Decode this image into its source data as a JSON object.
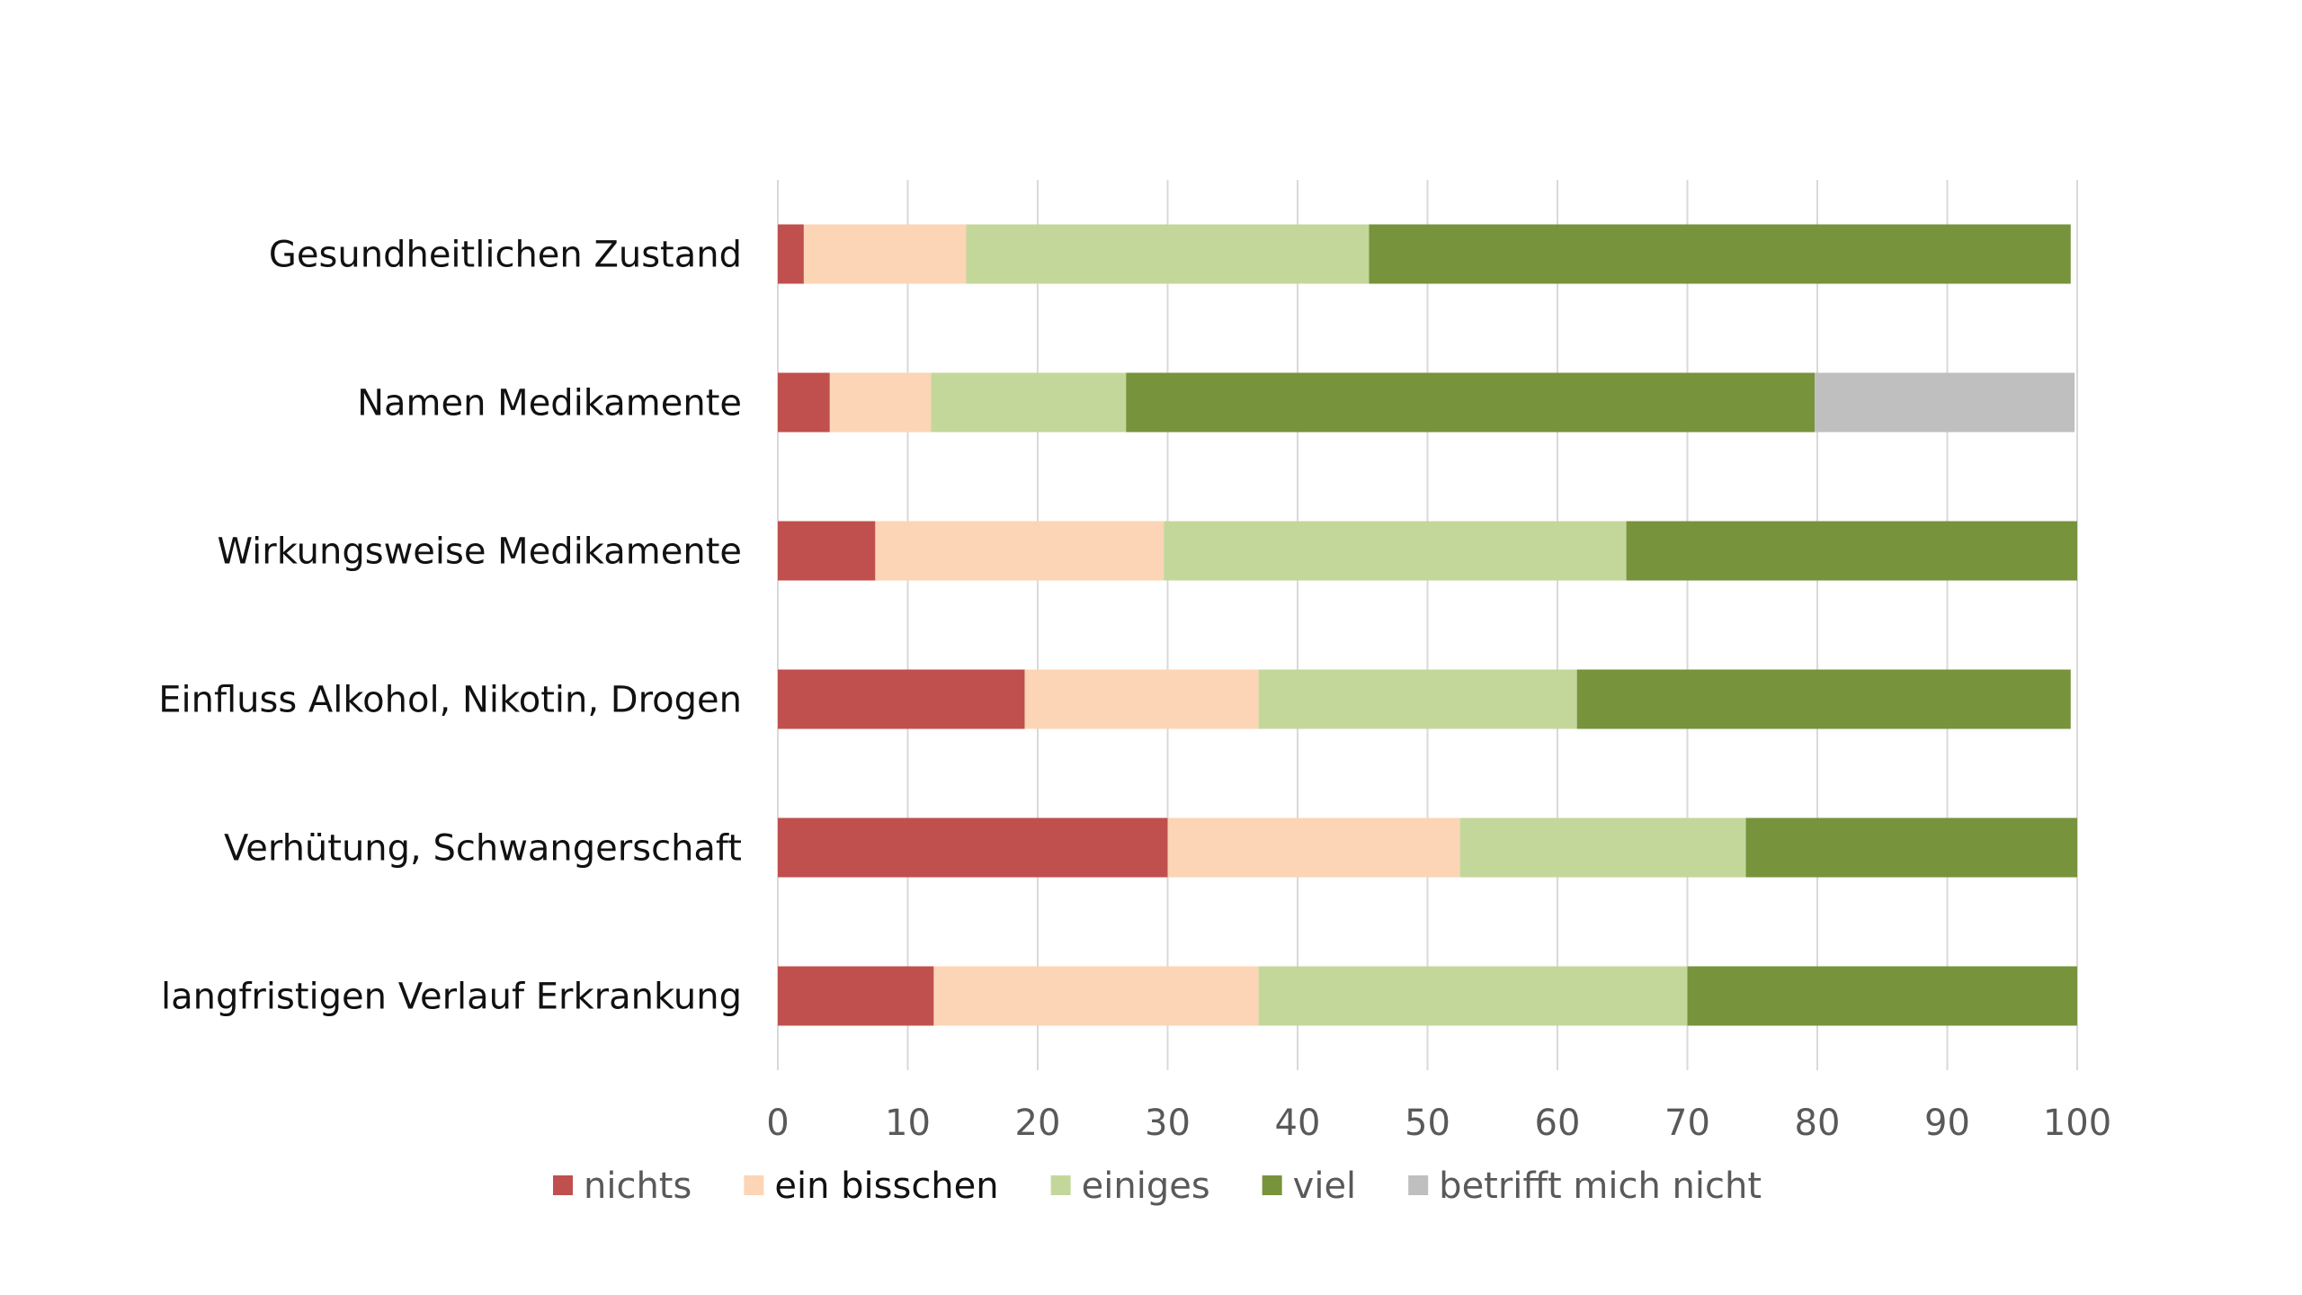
{
  "chart_data": {
    "type": "bar",
    "orientation": "horizontal",
    "stacked": true,
    "categories": [
      "Gesundheitlichen Zustand",
      "Namen Medikamente",
      "Wirkungsweise Medikamente",
      "Einfluss Alkohol, Nikotin, Drogen",
      "Verhütung, Schwangerschaft",
      "langfristigen Verlauf Erkrankung"
    ],
    "series": [
      {
        "name": "nichts",
        "color": "#c0504d",
        "values": [
          2,
          4,
          7.5,
          19,
          30,
          12
        ]
      },
      {
        "name": "ein bisschen",
        "color": "#fbd5b5",
        "values": [
          12.5,
          7.8,
          22.2,
          18,
          22.5,
          25
        ]
      },
      {
        "name": "einiges",
        "color": "#c4d79b",
        "values": [
          31,
          15,
          35.6,
          24.5,
          22,
          33
        ]
      },
      {
        "name": "viel",
        "color": "#77933c",
        "values": [
          54,
          53,
          34.7,
          38,
          25.5,
          30
        ]
      },
      {
        "name": "betrifft mich nicht",
        "color": "#bfbfbf",
        "values": [
          0,
          20,
          0,
          0,
          0,
          0
        ]
      }
    ],
    "title": "",
    "xlabel": "",
    "ylabel": "",
    "xlim": [
      0,
      100
    ],
    "xticks": [
      "0",
      "10",
      "20",
      "30",
      "40",
      "50",
      "60",
      "70",
      "80",
      "90",
      "100"
    ],
    "grid": true,
    "legend_position": "bottom"
  }
}
